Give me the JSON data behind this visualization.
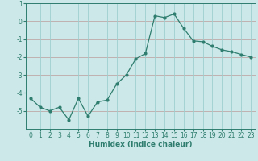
{
  "x": [
    0,
    1,
    2,
    3,
    4,
    5,
    6,
    7,
    8,
    9,
    10,
    11,
    12,
    13,
    14,
    15,
    16,
    17,
    18,
    19,
    20,
    21,
    22,
    23
  ],
  "y": [
    -4.3,
    -4.8,
    -5.0,
    -4.8,
    -5.5,
    -4.3,
    -5.3,
    -4.5,
    -4.4,
    -3.5,
    -3.0,
    -2.1,
    -1.8,
    0.3,
    0.2,
    0.4,
    -0.4,
    -1.1,
    -1.15,
    -1.4,
    -1.6,
    -1.7,
    -1.85,
    -2.0
  ],
  "line_color": "#2e7d6e",
  "marker_color": "#2e7d6e",
  "bg_color": "#cce8e8",
  "grid_h_color": "#c0a8a8",
  "grid_v_color": "#9ecece",
  "xlabel": "Humidex (Indice chaleur)",
  "xlim": [
    -0.5,
    23.5
  ],
  "ylim": [
    -6.0,
    1.0
  ],
  "yticks": [
    1,
    0,
    -1,
    -2,
    -3,
    -4,
    -5
  ],
  "xticks": [
    0,
    1,
    2,
    3,
    4,
    5,
    6,
    7,
    8,
    9,
    10,
    11,
    12,
    13,
    14,
    15,
    16,
    17,
    18,
    19,
    20,
    21,
    22,
    23
  ],
  "label_fontsize": 6.5,
  "tick_fontsize": 5.5,
  "figsize": [
    3.2,
    2.0
  ],
  "dpi": 100
}
